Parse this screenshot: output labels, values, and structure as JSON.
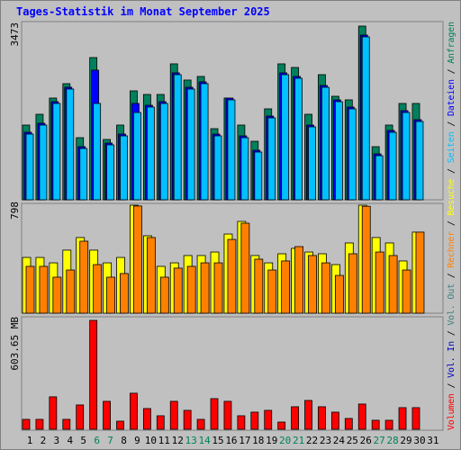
{
  "title": "Tages-Statistik im Monat September 2025",
  "legend_separator": " / ",
  "chart_data": [
    {
      "type": "bar",
      "ylim": [
        0,
        3473
      ],
      "yticks": [
        3473
      ],
      "series": [
        {
          "name": "Anfragen",
          "color": "#00805c",
          "values": [
            1494,
            1710,
            2034,
            2322,
            1242,
            2844,
            1206,
            1494,
            2178,
            2106,
            2106,
            2718,
            2394,
            2466,
            1422,
            2034,
            1494,
            1170,
            1818,
            2718,
            2646,
            1710,
            2502,
            2070,
            1998,
            3473,
            1062,
            1494,
            1926,
            1926,
            null
          ]
        },
        {
          "name": "Dateien",
          "color": "#0000ff",
          "values": [
            1350,
            1530,
            1962,
            2250,
            1062,
            2592,
            1134,
            1314,
            1926,
            1890,
            1962,
            2538,
            2250,
            2358,
            1314,
            2034,
            1278,
            990,
            1674,
            2538,
            2466,
            1494,
            2286,
            1998,
            1854,
            3294,
            918,
            1386,
            1782,
            1602,
            null
          ]
        },
        {
          "name": "Seiten",
          "color": "#00c0ff",
          "values": [
            1314,
            1494,
            1926,
            2214,
            1026,
            1926,
            1098,
            1278,
            1746,
            1854,
            1926,
            2502,
            2214,
            2322,
            1278,
            1998,
            1242,
            954,
            1638,
            2502,
            2430,
            1458,
            2250,
            1962,
            1818,
            3258,
            882,
            1350,
            1746,
            1566,
            null
          ]
        }
      ]
    },
    {
      "type": "bar",
      "ylim": [
        0,
        798
      ],
      "yticks": [
        798
      ],
      "series": [
        {
          "name": "Besuche",
          "color": "#ffff00",
          "values": [
            412,
            412,
            372,
            466,
            559,
            466,
            372,
            412,
            798,
            572,
            346,
            372,
            426,
            426,
            452,
            585,
            678,
            426,
            372,
            439,
            479,
            452,
            439,
            359,
            519,
            798,
            559,
            519,
            386,
            599,
            null
          ]
        },
        {
          "name": "Rechner",
          "color": "#ff8000",
          "values": [
            346,
            346,
            266,
            319,
            532,
            359,
            266,
            293,
            792,
            559,
            266,
            333,
            346,
            372,
            372,
            545,
            665,
            399,
            319,
            386,
            492,
            426,
            372,
            279,
            439,
            790,
            452,
            426,
            319,
            599,
            null
          ]
        }
      ]
    },
    {
      "type": "bar",
      "ylim": [
        0,
        603.65
      ],
      "yticks": [
        {
          "value": 603.65,
          "label": "603.65 MB"
        }
      ],
      "categories": [
        "1",
        "2",
        "3",
        "4",
        "5",
        "6",
        "7",
        "8",
        "9",
        "10",
        "11",
        "12",
        "13",
        "14",
        "15",
        "16",
        "17",
        "18",
        "19",
        "20",
        "21",
        "22",
        "23",
        "24",
        "25",
        "26",
        "27",
        "28",
        "29",
        "30",
        "31"
      ],
      "category_colors": [
        "#000000",
        "#000000",
        "#000000",
        "#000000",
        "#000000",
        "#00805c",
        "#00805c",
        "#000000",
        "#000000",
        "#000000",
        "#000000",
        "#000000",
        "#00805c",
        "#00805c",
        "#000000",
        "#000000",
        "#000000",
        "#000000",
        "#000000",
        "#00805c",
        "#00805c",
        "#000000",
        "#000000",
        "#000000",
        "#000000",
        "#000000",
        "#00805c",
        "#00805c",
        "#000000",
        "#000000",
        "#000000"
      ],
      "series": [
        {
          "name": "Volumen",
          "color": "#ff0000",
          "values": [
            55,
            55,
            180,
            55,
            135,
            603.65,
            155,
            45,
            200,
            115,
            75,
            155,
            105,
            55,
            170,
            155,
            75,
            95,
            105,
            40,
            125,
            160,
            125,
            95,
            60,
            140,
            50,
            50,
            120,
            120,
            null
          ]
        },
        {
          "name": "Vol. In",
          "color": "#0000c0",
          "values": [
            null,
            null,
            null,
            null,
            null,
            null,
            null,
            null,
            null,
            null,
            null,
            null,
            null,
            null,
            null,
            null,
            null,
            null,
            null,
            null,
            null,
            null,
            null,
            null,
            null,
            null,
            null,
            null,
            null,
            null,
            null
          ]
        },
        {
          "name": "Vol. Out",
          "color": "#408080",
          "values": [
            null,
            null,
            null,
            null,
            null,
            null,
            null,
            null,
            null,
            null,
            null,
            null,
            null,
            null,
            null,
            null,
            null,
            null,
            null,
            null,
            null,
            null,
            null,
            null,
            null,
            null,
            null,
            null,
            null,
            null,
            null
          ]
        }
      ]
    }
  ]
}
